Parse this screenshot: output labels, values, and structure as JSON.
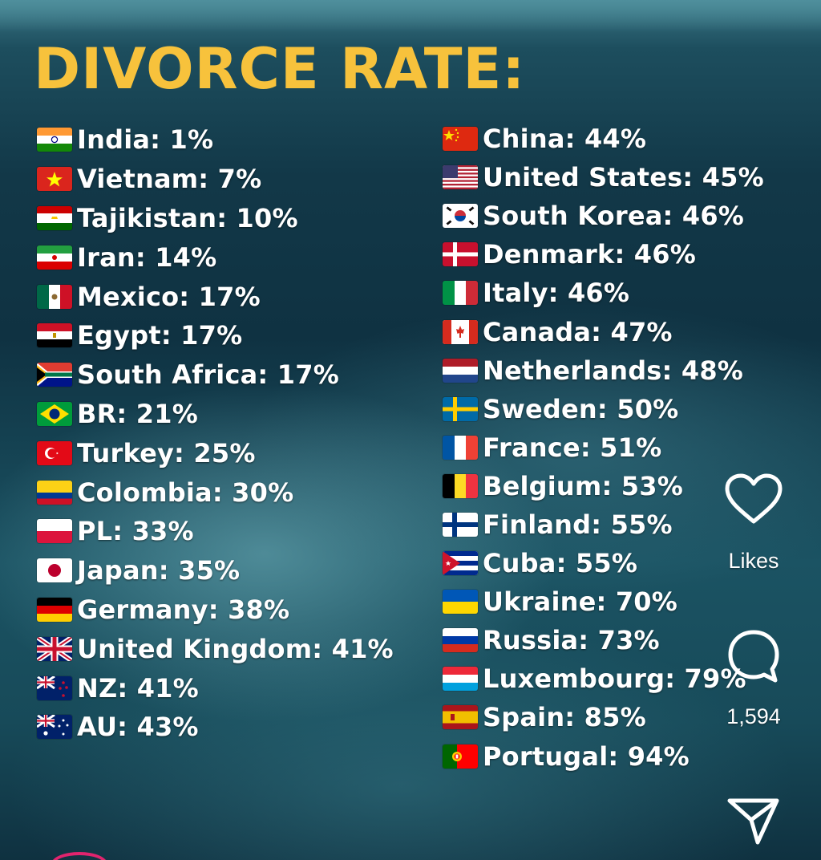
{
  "title": "DIVORCE RATE:",
  "left_column": [
    {
      "flag_icon": "india-flag-icon",
      "label": "India: 1%"
    },
    {
      "flag_icon": "vietnam-flag-icon",
      "label": "Vietnam: 7%"
    },
    {
      "flag_icon": "tajikistan-flag-icon",
      "label": "Tajikistan: 10%"
    },
    {
      "flag_icon": "iran-flag-icon",
      "label": "Iran: 14%"
    },
    {
      "flag_icon": "mexico-flag-icon",
      "label": "Mexico: 17%"
    },
    {
      "flag_icon": "egypt-flag-icon",
      "label": "Egypt: 17%"
    },
    {
      "flag_icon": "south-africa-flag-icon",
      "label": "South Africa: 17%"
    },
    {
      "flag_icon": "brazil-flag-icon",
      "label": "BR: 21%"
    },
    {
      "flag_icon": "turkey-flag-icon",
      "label": "Turkey: 25%"
    },
    {
      "flag_icon": "colombia-flag-icon",
      "label": "Colombia: 30%"
    },
    {
      "flag_icon": "poland-flag-icon",
      "label": "PL: 33%"
    },
    {
      "flag_icon": "japan-flag-icon",
      "label": "Japan: 35%"
    },
    {
      "flag_icon": "germany-flag-icon",
      "label": "Germany: 38%"
    },
    {
      "flag_icon": "united-kingdom-flag-icon",
      "label": "United Kingdom: 41%"
    },
    {
      "flag_icon": "new-zealand-flag-icon",
      "label": "NZ: 41%"
    },
    {
      "flag_icon": "australia-flag-icon",
      "label": "AU: 43%"
    }
  ],
  "right_column": [
    {
      "flag_icon": "china-flag-icon",
      "label": "China: 44%"
    },
    {
      "flag_icon": "united-states-flag-icon",
      "label": "United States: 45%"
    },
    {
      "flag_icon": "south-korea-flag-icon",
      "label": "South Korea: 46%"
    },
    {
      "flag_icon": "denmark-flag-icon",
      "label": "Denmark: 46%"
    },
    {
      "flag_icon": "italy-flag-icon",
      "label": "Italy: 46%"
    },
    {
      "flag_icon": "canada-flag-icon",
      "label": "Canada: 47%"
    },
    {
      "flag_icon": "netherlands-flag-icon",
      "label": "Netherlands: 48%"
    },
    {
      "flag_icon": "sweden-flag-icon",
      "label": "Sweden: 50%"
    },
    {
      "flag_icon": "france-flag-icon",
      "label": "France: 51%"
    },
    {
      "flag_icon": "belgium-flag-icon",
      "label": "Belgium: 53%"
    },
    {
      "flag_icon": "finland-flag-icon",
      "label": "Finland: 55%"
    },
    {
      "flag_icon": "cuba-flag-icon",
      "label": "Cuba: 55%"
    },
    {
      "flag_icon": "ukraine-flag-icon",
      "label": "Ukraine: 70%"
    },
    {
      "flag_icon": "russia-flag-icon",
      "label": "Russia: 73%"
    },
    {
      "flag_icon": "luxembourg-flag-icon",
      "label": "Luxembourg: 79%"
    },
    {
      "flag_icon": "spain-flag-icon",
      "label": "Spain: 85%"
    },
    {
      "flag_icon": "portugal-flag-icon",
      "label": "Portugal: 94%"
    }
  ],
  "sidebar": {
    "like_icon": "heart-icon",
    "like_label": "Likes",
    "comment_icon": "comment-bubble-icon",
    "comment_count": "1,594",
    "share_icon": "send-paper-plane-icon"
  },
  "colors": {
    "title": "#f7c23c",
    "text": "#ffffff",
    "avatar_ring": "#e0246e"
  }
}
